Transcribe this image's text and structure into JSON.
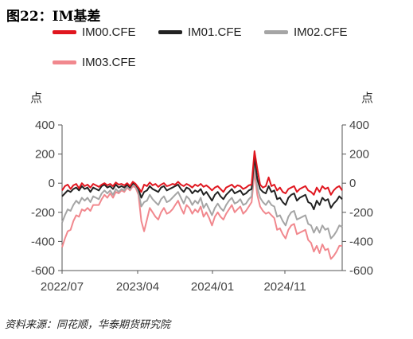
{
  "title": "图22：IM基差",
  "source": "资料来源：同花顺，华泰期货研究院",
  "chart_data": {
    "type": "line",
    "title": "",
    "ylabel_left": "点",
    "ylabel_right": "点",
    "ylim": [
      -600,
      400
    ],
    "yticks": [
      400,
      200,
      0,
      -200,
      -400,
      -600
    ],
    "xtick_labels": [
      "2022/07",
      "2023/04",
      "2024/01",
      "2024/11"
    ],
    "x_start": "2022/07",
    "x_end": "2025/06",
    "legend_position": "top",
    "series": [
      {
        "name": "IM00.CFE",
        "color": "#e0161f",
        "values": [
          -50,
          -20,
          -10,
          -40,
          -15,
          -5,
          -35,
          0,
          -20,
          -10,
          -30,
          -5,
          -15,
          -25,
          -10,
          0,
          -15,
          -5,
          -20,
          5,
          -10,
          -5,
          -15,
          0,
          -20,
          10,
          -5,
          -30,
          -60,
          -10,
          -20,
          5,
          -15,
          -5,
          -25,
          -10,
          0,
          -20,
          -15,
          -5,
          -10,
          10,
          -10,
          -20,
          -5,
          -15,
          -30,
          -10,
          -20,
          -5,
          -25,
          -15,
          -30,
          -50,
          -30,
          -20,
          -40,
          -60,
          -30,
          -20,
          -10,
          -30,
          -15,
          -20,
          -40,
          -30,
          -15,
          -10,
          220,
          100,
          -10,
          -30,
          -20,
          40,
          -20,
          -10,
          -50,
          -30,
          -60,
          -70,
          -40,
          -30,
          -20,
          -60,
          -40,
          -30,
          -20,
          -50,
          -60,
          -80,
          -30,
          -60,
          -20,
          -40,
          -30,
          -80,
          -50,
          -30,
          -20,
          -50
        ]
      },
      {
        "name": "IM01.CFE",
        "color": "#222222",
        "values": [
          -90,
          -70,
          -50,
          -60,
          -40,
          -30,
          -50,
          -20,
          -40,
          -30,
          -60,
          -30,
          -40,
          -50,
          -20,
          -10,
          -30,
          -20,
          -40,
          -10,
          -30,
          -20,
          -30,
          -10,
          -30,
          0,
          -10,
          -40,
          -100,
          -60,
          -50,
          -20,
          -40,
          -50,
          -60,
          -30,
          -20,
          -50,
          -40,
          -30,
          -20,
          -10,
          -40,
          -60,
          -30,
          -40,
          -70,
          -50,
          -60,
          -40,
          -80,
          -60,
          -90,
          -120,
          -80,
          -60,
          -90,
          -110,
          -80,
          -60,
          -40,
          -70,
          -60,
          -50,
          -80,
          -70,
          -50,
          -40,
          180,
          30,
          -40,
          -60,
          -70,
          -20,
          -60,
          -50,
          -110,
          -100,
          -130,
          -150,
          -100,
          -80,
          -70,
          -120,
          -100,
          -90,
          -80,
          -130,
          -140,
          -180,
          -120,
          -150,
          -100,
          -120,
          -110,
          -170,
          -140,
          -120,
          -90,
          -110
        ]
      },
      {
        "name": "IM02.CFE",
        "color": "#a5a5a5",
        "values": [
          -270,
          -220,
          -180,
          -190,
          -150,
          -120,
          -140,
          -100,
          -120,
          -100,
          -130,
          -90,
          -100,
          -110,
          -70,
          -50,
          -70,
          -50,
          -80,
          -40,
          -60,
          -40,
          -50,
          -20,
          -40,
          -10,
          -20,
          -60,
          -160,
          -130,
          -120,
          -80,
          -110,
          -130,
          -150,
          -110,
          -90,
          -130,
          -120,
          -100,
          -80,
          -60,
          -100,
          -140,
          -90,
          -110,
          -150,
          -120,
          -140,
          -100,
          -170,
          -140,
          -180,
          -220,
          -170,
          -140,
          -170,
          -190,
          -150,
          -120,
          -100,
          -140,
          -130,
          -110,
          -150,
          -140,
          -110,
          -90,
          140,
          -30,
          -100,
          -130,
          -150,
          -120,
          -150,
          -160,
          -230,
          -220,
          -260,
          -290,
          -230,
          -200,
          -190,
          -250,
          -240,
          -230,
          -220,
          -280,
          -290,
          -340,
          -300,
          -340,
          -290,
          -320,
          -310,
          -380,
          -360,
          -330,
          -290,
          -300
        ]
      },
      {
        "name": "IM03.CFE",
        "color": "#f1888e",
        "values": [
          -440,
          -380,
          -330,
          -320,
          -260,
          -220,
          -230,
          -180,
          -190,
          -170,
          -190,
          -150,
          -150,
          -150,
          -110,
          -80,
          -100,
          -70,
          -100,
          -60,
          -70,
          -50,
          -60,
          -30,
          -50,
          -20,
          -30,
          -80,
          -260,
          -330,
          -250,
          -170,
          -200,
          -230,
          -250,
          -200,
          -170,
          -210,
          -200,
          -180,
          -150,
          -120,
          -170,
          -210,
          -150,
          -170,
          -210,
          -180,
          -200,
          -160,
          -230,
          -200,
          -240,
          -290,
          -230,
          -200,
          -230,
          -250,
          -210,
          -180,
          -150,
          -200,
          -180,
          -160,
          -210,
          -190,
          -160,
          -130,
          80,
          -80,
          -160,
          -190,
          -210,
          -200,
          -220,
          -240,
          -320,
          -310,
          -350,
          -380,
          -320,
          -290,
          -280,
          -350,
          -340,
          -330,
          -320,
          -390,
          -410,
          -470,
          -430,
          -480,
          -420,
          -460,
          -450,
          -520,
          -500,
          -470,
          -430,
          -430
        ]
      }
    ]
  }
}
